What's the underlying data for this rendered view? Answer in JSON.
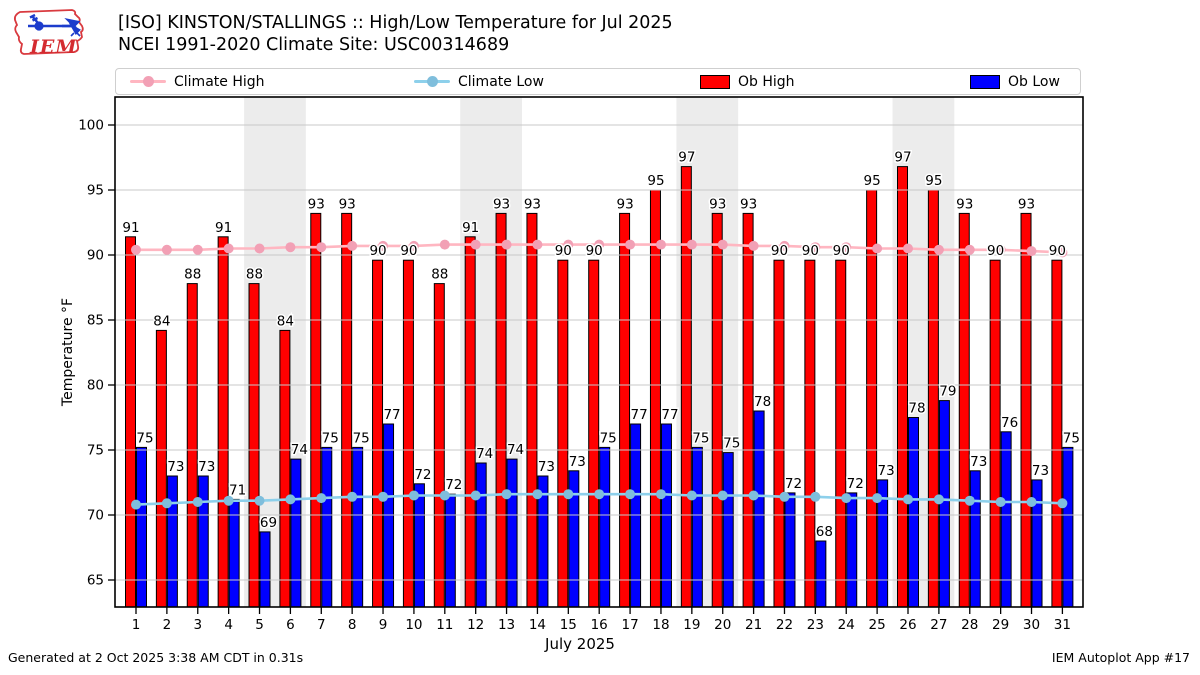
{
  "header": {
    "title_line1": "[ISO] KINSTON/STALLINGS :: High/Low Temperature for Jul 2025",
    "title_line2": "NCEI 1991-2020 Climate Site: USC00314689",
    "logo_text": "IEM"
  },
  "legend": [
    {
      "label": "Climate High",
      "type": "line",
      "color": "#FFB6C1",
      "marker_color": "#F2A0B5"
    },
    {
      "label": "Climate Low",
      "type": "line",
      "color": "#8DD0EB",
      "marker_color": "#7FBEDC"
    },
    {
      "label": "Ob High",
      "type": "patch",
      "color": "#FF0000"
    },
    {
      "label": "Ob Low",
      "type": "patch",
      "color": "#0000FF"
    }
  ],
  "footer": {
    "left": "Generated at 2 Oct 2025 3:38 AM CDT in 0.31s",
    "right": "IEM Autoplot App #17"
  },
  "chart_data": {
    "type": "bar",
    "title": "[ISO] KINSTON/STALLINGS :: High/Low Temperature for Jul 2025",
    "subtitle": "NCEI 1991-2020 Climate Site: USC00314689",
    "xlabel": "July 2025",
    "ylabel": "Temperature °F",
    "x": [
      1,
      2,
      3,
      4,
      5,
      6,
      7,
      8,
      9,
      10,
      11,
      12,
      13,
      14,
      15,
      16,
      17,
      18,
      19,
      20,
      21,
      22,
      23,
      24,
      25,
      26,
      27,
      28,
      29,
      30,
      31
    ],
    "x_tick_labels": [
      "1",
      "2",
      "3",
      "4",
      "5",
      "6",
      "7",
      "8",
      "9",
      "10",
      "11",
      "12",
      "13",
      "14",
      "15",
      "16",
      "17",
      "18",
      "19",
      "20",
      "21",
      "22",
      "23",
      "24",
      "25",
      "26",
      "27",
      "28",
      "29",
      "30",
      "31"
    ],
    "yticks": [
      65,
      70,
      75,
      80,
      85,
      90,
      95,
      100
    ],
    "ylim": [
      62.9,
      102.3
    ],
    "grid": true,
    "grid_color": "#c9c9c9",
    "weekend_band_color": "#ececec",
    "legend_position": "top",
    "weekend_shading_days": [
      [
        5,
        6
      ],
      [
        12,
        13
      ],
      [
        19,
        20
      ],
      [
        26,
        27
      ]
    ],
    "series": [
      {
        "name": "Climate High",
        "type": "line",
        "color": "#FFB6C1",
        "marker_color": "#F2A0B5",
        "values": [
          90.4,
          90.4,
          90.4,
          90.5,
          90.5,
          90.6,
          90.6,
          90.7,
          90.7,
          90.7,
          90.8,
          90.8,
          90.8,
          90.8,
          90.8,
          90.8,
          90.8,
          90.8,
          90.8,
          90.8,
          90.7,
          90.7,
          90.6,
          90.6,
          90.5,
          90.5,
          90.4,
          90.4,
          90.4,
          90.3,
          90.2
        ]
      },
      {
        "name": "Climate Low",
        "type": "line",
        "color": "#8DD0EB",
        "marker_color": "#7FBEDC",
        "values": [
          70.8,
          70.9,
          71.0,
          71.1,
          71.1,
          71.2,
          71.3,
          71.4,
          71.4,
          71.5,
          71.5,
          71.5,
          71.6,
          71.6,
          71.6,
          71.6,
          71.6,
          71.6,
          71.5,
          71.5,
          71.5,
          71.4,
          71.4,
          71.3,
          71.3,
          71.2,
          71.2,
          71.1,
          71.0,
          71.0,
          70.9
        ]
      },
      {
        "name": "Ob High",
        "type": "bar",
        "color": "#FF0000",
        "values": [
          91.4,
          84.2,
          87.8,
          91.4,
          87.8,
          84.2,
          93.2,
          93.2,
          89.6,
          89.6,
          87.8,
          91.4,
          93.2,
          93.2,
          89.6,
          89.6,
          93.2,
          95.0,
          96.8,
          93.2,
          93.2,
          89.6,
          89.6,
          89.6,
          95.0,
          96.8,
          95.0,
          93.2,
          89.6,
          93.2,
          89.6
        ],
        "labels": [
          "91",
          "84",
          "88",
          "91",
          "88",
          "84",
          "93",
          "93",
          "90",
          "90",
          "88",
          "91",
          "93",
          "93",
          "90",
          "90",
          "93",
          "95",
          "97",
          "93",
          "93",
          "90",
          "90",
          "90",
          "95",
          "97",
          "95",
          "93",
          "90",
          "93",
          "90"
        ]
      },
      {
        "name": "Ob Low",
        "type": "bar",
        "color": "#0000FF",
        "values": [
          75.2,
          73.0,
          73.0,
          71.2,
          68.7,
          74.3,
          75.2,
          75.2,
          77.0,
          72.4,
          71.6,
          74.0,
          74.3,
          73.0,
          73.4,
          75.2,
          77.0,
          77.0,
          75.2,
          74.8,
          78.0,
          71.7,
          68.0,
          71.7,
          72.7,
          77.5,
          78.8,
          73.4,
          76.4,
          72.7,
          75.2
        ],
        "labels": [
          "75",
          "73",
          "73",
          "71",
          "69",
          "74",
          "75",
          "75",
          "77",
          "72",
          "72",
          "74",
          "74",
          "73",
          "73",
          "75",
          "77",
          "77",
          "75",
          "75",
          "78",
          "72",
          "68",
          "72",
          "73",
          "78",
          "79",
          "73",
          "76",
          "73",
          "75"
        ]
      }
    ]
  }
}
